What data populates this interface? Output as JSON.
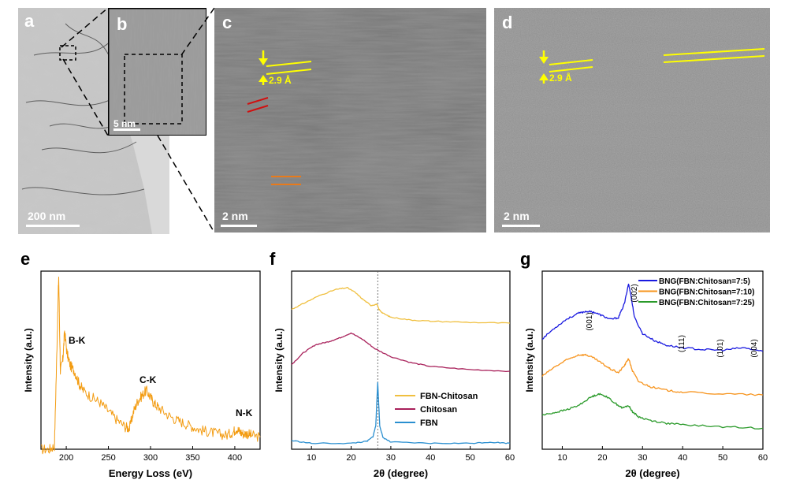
{
  "panels": {
    "a": {
      "letter": "a",
      "scale_bar": "200 nm"
    },
    "b": {
      "letter": "b",
      "scale_bar": "5 nm"
    },
    "c": {
      "letter": "c",
      "scale_bar": "2 nm",
      "spacing_label": "2.9 Å"
    },
    "d": {
      "letter": "d",
      "scale_bar": "2 nm",
      "spacing_label": "2.9 Å"
    },
    "e": {
      "letter": "e"
    },
    "f": {
      "letter": "f"
    },
    "g": {
      "letter": "g"
    }
  },
  "colors": {
    "annotation_yellow": "#ffff00",
    "annotation_red": "#d01010",
    "annotation_orange": "#e87a1a",
    "eels": "#f39c12",
    "fbn_chitosan": "#f0c040",
    "chitosan": "#a8205a",
    "fbn": "#2a8fd0",
    "bng_7_5": "#1a1ae0",
    "bng_7_10": "#f7941d",
    "bng_7_25": "#2a9a2a"
  },
  "chart_data": [
    {
      "panel": "e",
      "type": "line",
      "xlabel": "Energy Loss (eV)",
      "ylabel": "Intensity (a.u.)",
      "xlim": [
        170,
        430
      ],
      "xticks": [
        200,
        250,
        300,
        350,
        400
      ],
      "yticks_shown": false,
      "grid": false,
      "annotations": [
        "B-K",
        "C-K",
        "N-K"
      ],
      "series": [
        {
          "x": [
            170,
            180,
            186,
            189,
            191,
            193,
            196,
            198,
            201,
            205,
            210,
            215,
            220,
            230,
            240,
            250,
            260,
            270,
            275,
            280,
            285,
            290,
            295,
            300,
            305,
            310,
            320,
            330,
            340,
            350,
            360,
            370,
            380,
            390,
            398,
            402,
            406,
            410,
            415,
            420,
            430
          ],
          "y": [
            0.0,
            0.0,
            0.02,
            0.6,
            1.0,
            0.45,
            0.52,
            0.68,
            0.55,
            0.48,
            0.45,
            0.38,
            0.34,
            0.3,
            0.27,
            0.22,
            0.17,
            0.13,
            0.12,
            0.22,
            0.28,
            0.31,
            0.34,
            0.3,
            0.26,
            0.24,
            0.2,
            0.17,
            0.15,
            0.13,
            0.11,
            0.1,
            0.09,
            0.08,
            0.1,
            0.12,
            0.1,
            0.09,
            0.09,
            0.08,
            0.07
          ]
        }
      ]
    },
    {
      "panel": "f",
      "type": "line",
      "xlabel": "2θ (degree)",
      "ylabel": "Intensity (a.u.)",
      "xlim": [
        5,
        60
      ],
      "xticks": [
        10,
        20,
        30,
        40,
        50,
        60
      ],
      "yticks_shown": false,
      "grid": false,
      "reference_line_x": 26.7,
      "legend_position": "bottom-right",
      "series": [
        {
          "name": "FBN-Chitosan",
          "x": [
            5,
            8,
            12,
            16,
            19,
            21,
            23,
            25,
            26.5,
            27,
            28,
            30,
            35,
            40,
            50,
            60
          ],
          "y": [
            3.45,
            3.6,
            3.8,
            3.95,
            4.0,
            3.88,
            3.7,
            3.55,
            3.58,
            3.45,
            3.35,
            3.25,
            3.18,
            3.15,
            3.12,
            3.1
          ]
        },
        {
          "name": "Chitosan",
          "x": [
            5,
            8,
            11,
            14,
            17,
            20,
            23,
            26,
            30,
            35,
            40,
            50,
            60
          ],
          "y": [
            2.05,
            2.35,
            2.55,
            2.62,
            2.72,
            2.85,
            2.68,
            2.45,
            2.25,
            2.1,
            2.0,
            1.92,
            1.88
          ]
        },
        {
          "name": "FBN",
          "x": [
            5,
            10,
            20,
            24,
            25.5,
            26.2,
            26.7,
            27.2,
            28,
            30,
            40,
            50,
            55,
            60
          ],
          "y": [
            0.12,
            0.05,
            0.05,
            0.1,
            0.22,
            0.5,
            1.6,
            0.5,
            0.2,
            0.08,
            0.05,
            0.05,
            0.08,
            0.05
          ]
        }
      ]
    },
    {
      "panel": "g",
      "type": "line",
      "xlabel": "2θ (degree)",
      "ylabel": "Intensity (a.u.)",
      "xlim": [
        5,
        60
      ],
      "xticks": [
        10,
        20,
        30,
        40,
        50,
        60
      ],
      "yticks_shown": false,
      "grid": false,
      "legend_position": "top-right",
      "peak_labels": [
        "(001)",
        "(002)",
        "(111)",
        "(101)",
        "(004)"
      ],
      "series": [
        {
          "name": "BNG(FBN:Chitosan=7:5)",
          "x": [
            5,
            8,
            11,
            14,
            16,
            18,
            20,
            22,
            24,
            25.5,
            26.5,
            27,
            28,
            30,
            33,
            36,
            40,
            45,
            50,
            55,
            60
          ],
          "y": [
            3.0,
            3.3,
            3.55,
            3.72,
            3.78,
            3.75,
            3.65,
            3.55,
            3.6,
            4.0,
            4.55,
            4.3,
            3.6,
            3.15,
            2.95,
            2.82,
            2.75,
            2.7,
            2.68,
            2.75,
            2.65
          ]
        },
        {
          "name": "BNG(FBN:Chitosan=7:10)",
          "x": [
            5,
            8,
            11,
            14,
            16,
            18,
            20,
            22,
            24,
            25.5,
            26.5,
            27.5,
            29,
            32,
            36,
            40,
            50,
            60
          ],
          "y": [
            1.95,
            2.2,
            2.4,
            2.55,
            2.55,
            2.45,
            2.3,
            2.15,
            2.05,
            2.25,
            2.45,
            2.1,
            1.8,
            1.65,
            1.55,
            1.5,
            1.45,
            1.42
          ]
        },
        {
          "name": "BNG(FBN:Chitosan=7:25)",
          "x": [
            5,
            8,
            11,
            14,
            17,
            19,
            21,
            23,
            25,
            26.5,
            27.5,
            29,
            32,
            36,
            40,
            50,
            60
          ],
          "y": [
            0.85,
            0.92,
            1.0,
            1.12,
            1.35,
            1.45,
            1.38,
            1.2,
            1.05,
            1.12,
            0.95,
            0.8,
            0.7,
            0.62,
            0.58,
            0.52,
            0.48
          ]
        }
      ]
    }
  ]
}
